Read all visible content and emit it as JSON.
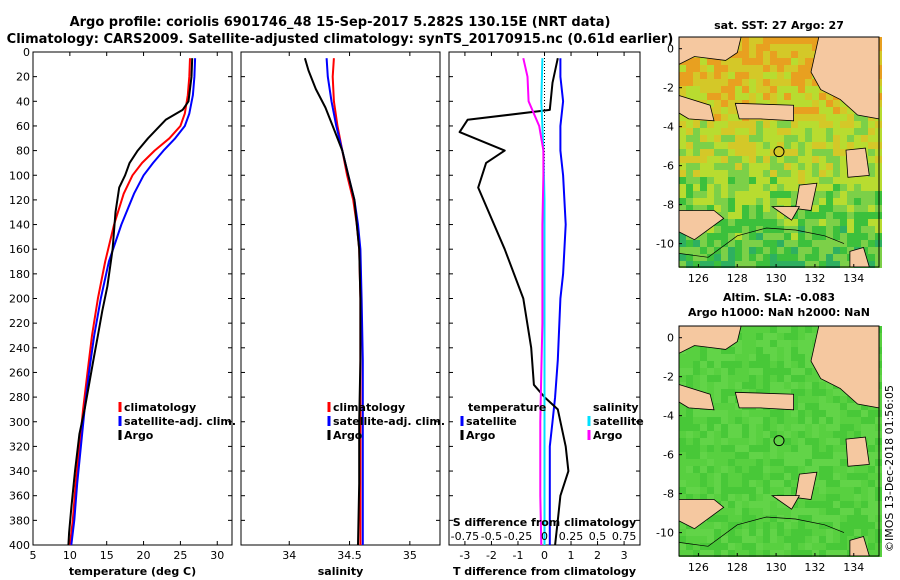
{
  "title": {
    "line1": "Argo profile: coriolis 6901746_48 15-Sep-2017 5.282S 130.15E (NRT data)",
    "line2": "Climatology: CARS2009. Satellite-adjusted climatology: synTS_20170915.nc (0.61d earlier)"
  },
  "colors": {
    "climatology": "#ff0000",
    "satellite": "#0000ff",
    "argo": "#000000",
    "sal_satellite": "#00e0ff",
    "sal_argo": "#ff00ff"
  },
  "depth_axis": {
    "ylim": [
      0,
      400
    ],
    "ticks": [
      0,
      20,
      40,
      60,
      80,
      100,
      120,
      140,
      160,
      180,
      200,
      220,
      240,
      260,
      280,
      300,
      320,
      340,
      360,
      380,
      400
    ]
  },
  "chart_data": [
    {
      "type": "line",
      "id": "temperature",
      "xlabel": "temperature (deg C)",
      "xlim": [
        5,
        32
      ],
      "xticks": [
        5,
        10,
        15,
        20,
        25,
        30
      ],
      "legend": [
        "climatology",
        "satellite-adj. clim.",
        "Argo"
      ],
      "series": [
        {
          "name": "climatology",
          "color_key": "climatology",
          "x": [
            26.3,
            26.2,
            26.0,
            25.6,
            25.0,
            23.5,
            21.5,
            19.8,
            18.5,
            17.3,
            16.0,
            14.8,
            13.8,
            13.0,
            12.4,
            11.8,
            11.3,
            10.8,
            10.4,
            10.0
          ],
          "y": [
            5,
            20,
            35,
            50,
            60,
            70,
            80,
            90,
            100,
            115,
            140,
            170,
            200,
            230,
            260,
            290,
            320,
            350,
            380,
            400
          ]
        },
        {
          "name": "satellite-adj. clim.",
          "color_key": "satellite",
          "x": [
            27.0,
            26.9,
            26.7,
            26.2,
            25.6,
            24.3,
            22.7,
            21.3,
            20.0,
            18.7,
            17.0,
            15.3,
            14.2,
            13.3,
            12.6,
            12.0,
            11.5,
            11.0,
            10.6,
            10.2
          ],
          "y": [
            5,
            20,
            35,
            50,
            60,
            70,
            80,
            90,
            100,
            115,
            140,
            170,
            200,
            230,
            260,
            290,
            320,
            350,
            380,
            400
          ]
        },
        {
          "name": "Argo",
          "color_key": "argo",
          "x": [
            26.6,
            26.5,
            26.1,
            25.3,
            23.0,
            20.6,
            19.2,
            18.1,
            17.5,
            16.7,
            16.2,
            15.8,
            15.1,
            14.4,
            13.8,
            13.2,
            12.6,
            12.0,
            11.3,
            10.7,
            10.2,
            9.9,
            9.8
          ],
          "y": [
            5,
            20,
            40,
            47,
            55,
            70,
            80,
            90,
            100,
            110,
            130,
            160,
            190,
            210,
            230,
            250,
            270,
            290,
            310,
            340,
            370,
            390,
            400
          ]
        }
      ]
    },
    {
      "type": "line",
      "id": "salinity",
      "xlabel": "salinity",
      "xlim": [
        33.6,
        35.25
      ],
      "xticks": [
        34,
        34.5,
        35
      ],
      "legend": [
        "climatology",
        "satellite-adj. clim.",
        "Argo"
      ],
      "series": [
        {
          "name": "climatology",
          "color_key": "climatology",
          "x": [
            34.37,
            34.36,
            34.37,
            34.4,
            34.44,
            34.48,
            34.53,
            34.56,
            34.58,
            34.59,
            34.59,
            34.59,
            34.59,
            34.59
          ],
          "y": [
            5,
            20,
            40,
            60,
            80,
            100,
            120,
            140,
            160,
            200,
            250,
            300,
            350,
            400
          ]
        },
        {
          "name": "satellite-adj. clim.",
          "color_key": "satellite",
          "x": [
            34.31,
            34.32,
            34.35,
            34.39,
            34.44,
            34.49,
            34.54,
            34.57,
            34.59,
            34.6,
            34.61,
            34.61,
            34.61,
            34.61
          ],
          "y": [
            5,
            20,
            40,
            60,
            80,
            100,
            120,
            140,
            160,
            200,
            250,
            300,
            350,
            400
          ]
        },
        {
          "name": "Argo",
          "color_key": "argo",
          "x": [
            34.13,
            34.16,
            34.22,
            34.3,
            34.36,
            34.44,
            34.49,
            34.54,
            34.56,
            34.58,
            34.59,
            34.59,
            34.58,
            34.58,
            34.57
          ],
          "y": [
            5,
            15,
            30,
            45,
            60,
            80,
            100,
            120,
            140,
            160,
            200,
            250,
            300,
            350,
            400
          ]
        }
      ]
    },
    {
      "type": "line",
      "id": "difference",
      "xlabel": "T difference from climatology",
      "xlabel_top": "S difference from climatology",
      "xlim": [
        -3.6,
        3.6
      ],
      "xticks": [
        -3,
        -2,
        -1,
        0,
        1,
        2,
        3
      ],
      "xticks_top": [
        -0.75,
        -0.5,
        -0.25,
        0,
        0.25,
        0.5,
        0.75
      ],
      "legend_t": {
        "header": "temperature",
        "items": [
          "satellite",
          "Argo"
        ]
      },
      "legend_s": {
        "header": "salinity",
        "items": [
          "satellite",
          "Argo"
        ]
      },
      "series": [
        {
          "name": "T satellite",
          "color_key": "satellite",
          "x": [
            0.6,
            0.6,
            0.7,
            0.6,
            0.6,
            0.7,
            0.8,
            0.7,
            0.6,
            0.5,
            0.4,
            0.3,
            0.2,
            0.2,
            0.2
          ],
          "y": [
            5,
            20,
            40,
            60,
            80,
            100,
            140,
            180,
            200,
            250,
            280,
            300,
            320,
            360,
            400
          ]
        },
        {
          "name": "T Argo",
          "color_key": "argo",
          "x": [
            0.5,
            0.3,
            0.2,
            -2.9,
            -3.2,
            -1.5,
            -2.2,
            -2.5,
            -1.5,
            -0.8,
            -0.5,
            -0.4,
            0,
            0.5,
            0.8,
            0.9,
            0.6,
            0.5,
            0.4
          ],
          "y": [
            5,
            25,
            47,
            55,
            65,
            80,
            90,
            110,
            160,
            200,
            240,
            270,
            280,
            290,
            320,
            340,
            360,
            380,
            400
          ]
        },
        {
          "name": "S satellite",
          "color_key": "sal_satellite",
          "x": [
            -0.02,
            -0.03,
            -0.01,
            0,
            0,
            0,
            0,
            0,
            0,
            0,
            0
          ],
          "y": [
            5,
            40,
            80,
            120,
            160,
            200,
            240,
            280,
            320,
            360,
            400
          ]
        },
        {
          "name": "S Argo",
          "color_key": "sal_argo",
          "x": [
            -0.2,
            -0.16,
            -0.15,
            -0.05,
            -0.01,
            -0.01,
            -0.02,
            -0.02,
            -0.02,
            -0.03,
            -0.04,
            -0.04,
            -0.03
          ],
          "y": [
            5,
            20,
            40,
            60,
            80,
            100,
            140,
            180,
            220,
            260,
            300,
            360,
            400
          ]
        }
      ]
    },
    {
      "type": "heatmap",
      "id": "sst_map",
      "title": "sat. SST: 27  Argo: 27",
      "xlim": [
        125,
        135.3
      ],
      "ylim": [
        -11.2,
        0.6
      ],
      "xticks": [
        126,
        128,
        130,
        132,
        134
      ],
      "yticks": [
        0,
        -2,
        -4,
        -6,
        -8,
        -10
      ],
      "argo_position": {
        "lon": 130.15,
        "lat": -5.282
      }
    },
    {
      "type": "heatmap",
      "id": "sla_map",
      "title": "Altim. SLA: -0.083",
      "subtitle": "Argo h1000: NaN h2000: NaN",
      "xlim": [
        125,
        135.3
      ],
      "ylim": [
        -11.2,
        0.6
      ],
      "xticks": [
        126,
        128,
        130,
        132,
        134
      ],
      "yticks": [
        0,
        -2,
        -4,
        -6,
        -8,
        -10
      ],
      "argo_position": {
        "lon": 130.15,
        "lat": -5.282
      }
    }
  ],
  "credit": "©IMOS 13-Dec-2018 01:56:05"
}
